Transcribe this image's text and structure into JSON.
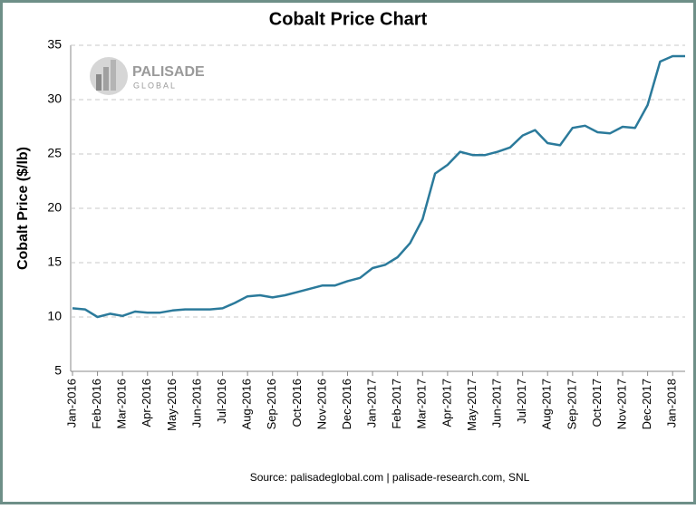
{
  "logo": {
    "name": "PALISADE",
    "sub": "GLOBAL"
  },
  "chart_data": {
    "type": "line",
    "title": "Cobalt Price Chart",
    "y_label": "Cobalt Price ($/lb)",
    "source": "Source: palisadeglobal.com | palisade-research.com, SNL",
    "categories": [
      "Jan-2016",
      null,
      "Feb-2016",
      null,
      "Mar-2016",
      null,
      "Apr-2016",
      null,
      "May-2016",
      null,
      "Jun-2016",
      null,
      "Jul-2016",
      null,
      "Aug-2016",
      null,
      "Sep-2016",
      null,
      "Oct-2016",
      null,
      "Nov-2016",
      null,
      "Dec-2016",
      null,
      "Jan-2017",
      null,
      "Feb-2017",
      null,
      "Mar-2017",
      null,
      "Apr-2017",
      null,
      "May-2017",
      null,
      "Jun-2017",
      null,
      "Jul-2017",
      null,
      "Aug-2017",
      null,
      "Sep-2017",
      null,
      "Oct-2017",
      null,
      "Nov-2017",
      null,
      "Dec-2017",
      null,
      "Jan-2018",
      null
    ],
    "values": [
      10.8,
      10.7,
      10.0,
      10.3,
      10.1,
      10.5,
      10.4,
      10.4,
      10.6,
      10.7,
      10.7,
      10.7,
      10.8,
      11.3,
      11.9,
      12.0,
      11.8,
      12.0,
      12.3,
      12.6,
      12.9,
      12.9,
      13.3,
      13.6,
      14.5,
      14.8,
      15.5,
      16.8,
      19.0,
      23.2,
      24.0,
      25.2,
      24.9,
      24.9,
      25.2,
      25.6,
      26.7,
      27.2,
      26.0,
      25.8,
      27.4,
      27.6,
      27.0,
      26.9,
      27.5,
      27.4,
      29.5,
      33.5,
      34.0,
      34.0
    ],
    "color": "#2b7a9b",
    "ylim": [
      5,
      35
    ],
    "yticks": [
      5,
      10,
      15,
      20,
      25,
      30,
      35
    ],
    "grid": true
  }
}
